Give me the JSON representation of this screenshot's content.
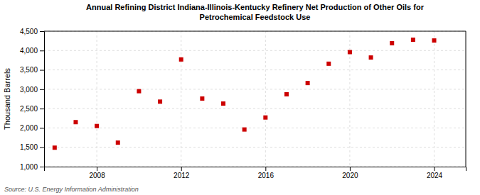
{
  "chart_data": {
    "type": "scatter",
    "title": "Annual Refining District Indiana-Illinois-Kentucky Refinery Net Production of Other Oils for\nPetrochemical Feedstock Use",
    "ylabel": "Thousand Barrels",
    "annotations": [
      "Source: U.S. Energy Information Administration"
    ],
    "x": [
      2006,
      2007,
      2008,
      2009,
      2010,
      2011,
      2012,
      2013,
      2014,
      2015,
      2016,
      2017,
      2018,
      2019,
      2020,
      2021,
      2022,
      2023,
      2024
    ],
    "values": [
      1490,
      2150,
      2050,
      1620,
      2950,
      2680,
      3770,
      2760,
      2630,
      1960,
      2270,
      2870,
      3160,
      3660,
      3960,
      3820,
      4190,
      4280,
      4260
    ],
    "color": "#cc0000",
    "marker": "square",
    "xlim": [
      2005.5,
      2025.5
    ],
    "xticks": [
      2008,
      2012,
      2016,
      2020,
      2024
    ],
    "ylim": [
      1000,
      4500
    ],
    "yticks": [
      {
        "value": 1000,
        "label": "1,000"
      },
      {
        "value": 1500,
        "label": "1,500"
      },
      {
        "value": 2000,
        "label": "2,000"
      },
      {
        "value": 2500,
        "label": "2,500"
      },
      {
        "value": 3000,
        "label": "3,000"
      },
      {
        "value": 3500,
        "label": "3,500"
      },
      {
        "value": 4000,
        "label": "4,000"
      },
      {
        "value": 4500,
        "label": "4,500"
      }
    ],
    "grid": true
  }
}
